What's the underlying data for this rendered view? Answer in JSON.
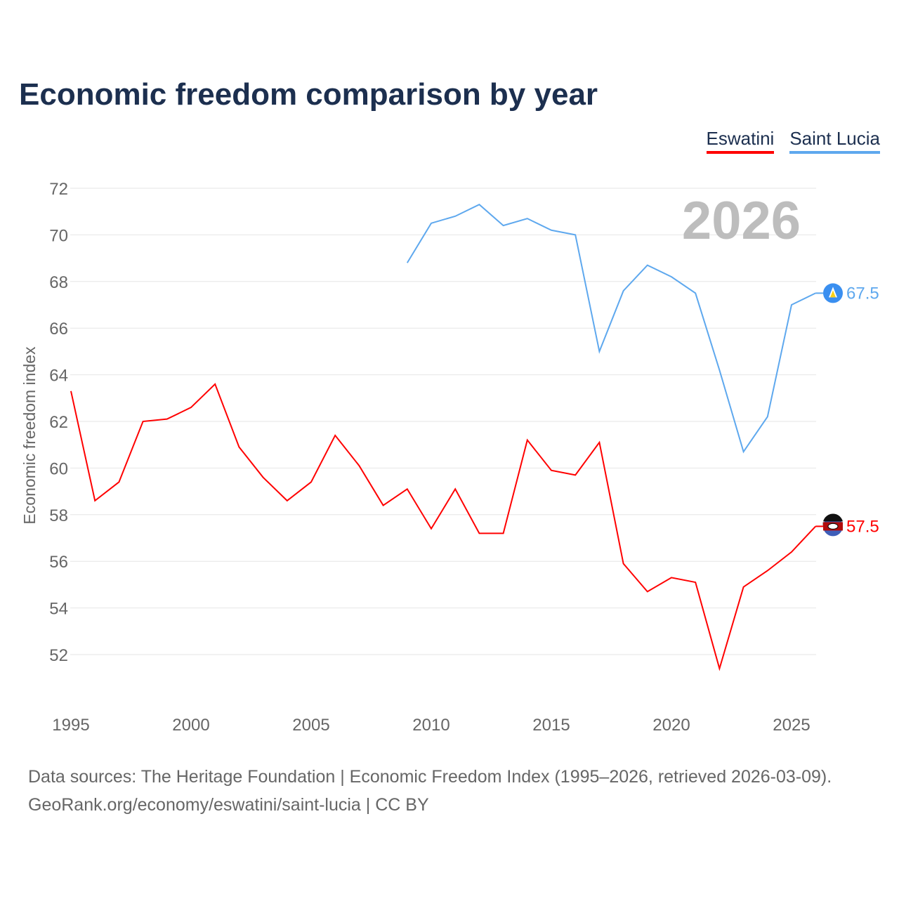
{
  "chart_data": {
    "type": "line",
    "title": "Economic freedom comparison by year",
    "ylabel": "Economic freedom index",
    "xlabel": "",
    "ylim": [
      50,
      72
    ],
    "xlim": [
      1995,
      2026
    ],
    "yticks": [
      52,
      54,
      56,
      58,
      60,
      62,
      64,
      66,
      68,
      70,
      72
    ],
    "xticks": [
      1995,
      2000,
      2005,
      2010,
      2015,
      2020,
      2025
    ],
    "grid": true,
    "legend_position": "top-right",
    "year_label": "2026",
    "series": [
      {
        "name": "Eswatini",
        "color": "#ff0000",
        "end_label": "57.5",
        "x": [
          1995,
          1996,
          1997,
          1998,
          1999,
          2000,
          2001,
          2002,
          2003,
          2004,
          2005,
          2006,
          2007,
          2008,
          2009,
          2010,
          2011,
          2012,
          2013,
          2014,
          2015,
          2016,
          2017,
          2018,
          2019,
          2020,
          2021,
          2022,
          2023,
          2024,
          2025,
          2026
        ],
        "values": [
          63.3,
          58.6,
          59.4,
          62.0,
          62.1,
          62.6,
          63.6,
          60.9,
          59.6,
          58.6,
          59.4,
          61.4,
          60.1,
          58.4,
          59.1,
          57.4,
          59.1,
          57.2,
          57.2,
          61.2,
          59.9,
          59.7,
          61.1,
          55.9,
          54.7,
          55.3,
          55.1,
          51.4,
          54.9,
          55.6,
          56.4,
          57.5
        ]
      },
      {
        "name": "Saint Lucia",
        "color": "#5ea8ee",
        "end_label": "67.5",
        "x": [
          2009,
          2010,
          2011,
          2012,
          2013,
          2014,
          2015,
          2016,
          2017,
          2018,
          2019,
          2020,
          2021,
          2022,
          2023,
          2024,
          2025,
          2026
        ],
        "values": [
          68.8,
          70.5,
          70.8,
          71.3,
          70.4,
          70.7,
          70.2,
          70.0,
          65.0,
          67.6,
          68.7,
          68.2,
          67.5,
          64.2,
          60.7,
          62.2,
          67.0,
          67.5
        ]
      }
    ]
  },
  "footer": {
    "line1": "Data sources: The Heritage Foundation | Economic Freedom Index (1995–2026, retrieved 2026-03-09).",
    "line2": "GeoRank.org/economy/eswatini/saint-lucia | CC BY"
  }
}
